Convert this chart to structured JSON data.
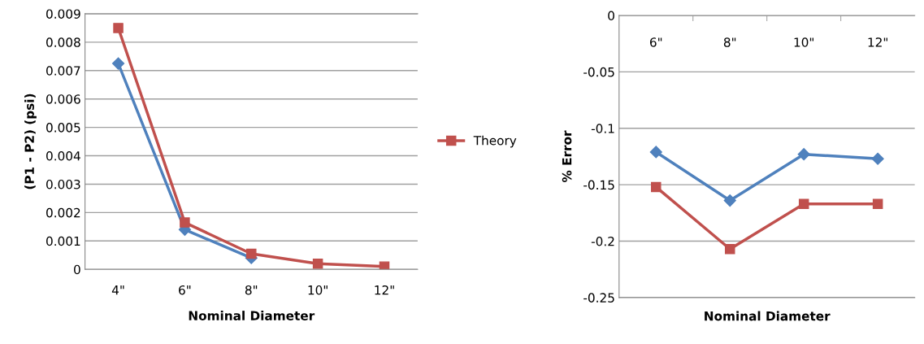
{
  "chart_data": [
    {
      "type": "line",
      "xlabel": "Nominal Diameter",
      "ylabel": "(P1 - P2) (psi)",
      "categories": [
        "4\"",
        "6\"",
        "8\"",
        "10\"",
        "12\""
      ],
      "ylim": [
        0,
        0.009
      ],
      "yticks": [
        0,
        0.001,
        0.002,
        0.003,
        0.004,
        0.005,
        0.006,
        0.007,
        0.008,
        0.009
      ],
      "grid": "y",
      "legend": "right",
      "series": [
        {
          "color": "#4f81bd",
          "marker": "diamond",
          "values": [
            0.00725,
            0.0014,
            0.0004,
            null,
            null
          ]
        },
        {
          "name": "Theory",
          "color": "#c0504d",
          "marker": "square",
          "values": [
            0.0085,
            0.00165,
            0.00055,
            0.0002,
            0.0001
          ]
        }
      ]
    },
    {
      "type": "line",
      "xlabel": "Nominal Diameter",
      "ylabel": "% Error",
      "categories": [
        "6\"",
        "8\"",
        "10\"",
        "12\""
      ],
      "ylim": [
        -0.25,
        0
      ],
      "yticks": [
        -0.25,
        -0.2,
        -0.15,
        -0.1,
        -0.05,
        0
      ],
      "grid": "y",
      "series": [
        {
          "color": "#4f81bd",
          "marker": "diamond",
          "values": [
            -0.121,
            -0.164,
            -0.123,
            -0.127
          ]
        },
        {
          "color": "#c0504d",
          "marker": "square",
          "values": [
            -0.152,
            -0.207,
            -0.167,
            -0.167
          ]
        }
      ]
    }
  ]
}
